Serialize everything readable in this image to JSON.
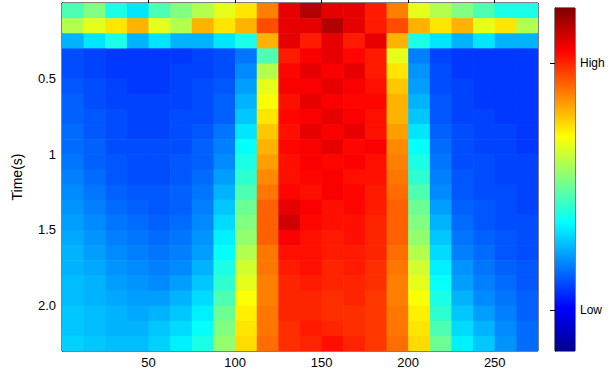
{
  "chart_data": {
    "type": "heatmap",
    "ylabel": "Time(s)",
    "x": [
      6.25,
      18.75,
      31.25,
      43.75,
      56.25,
      68.75,
      81.25,
      93.75,
      106.25,
      118.75,
      131.25,
      143.75,
      156.25,
      168.75,
      181.25,
      193.75,
      206.25,
      218.75,
      231.25,
      243.75,
      256.25,
      268.75
    ],
    "y": [
      0.05,
      0.15,
      0.25,
      0.35,
      0.45,
      0.55,
      0.65,
      0.75,
      0.85,
      0.95,
      1.05,
      1.15,
      1.25,
      1.35,
      1.45,
      1.55,
      1.65,
      1.75,
      1.85,
      1.95,
      2.05,
      2.15,
      2.25
    ],
    "values": [
      [
        0.45,
        0.5,
        0.4,
        0.35,
        0.45,
        0.5,
        0.55,
        0.6,
        0.65,
        0.75,
        0.9,
        0.95,
        0.9,
        0.9,
        0.85,
        0.75,
        0.6,
        0.55,
        0.5,
        0.45,
        0.4,
        0.4
      ],
      [
        0.55,
        0.6,
        0.65,
        0.7,
        0.6,
        0.55,
        0.7,
        0.65,
        0.7,
        0.8,
        0.9,
        0.9,
        0.95,
        0.9,
        0.85,
        0.8,
        0.7,
        0.65,
        0.7,
        0.6,
        0.65,
        0.55
      ],
      [
        0.3,
        0.35,
        0.4,
        0.3,
        0.35,
        0.3,
        0.3,
        0.35,
        0.4,
        0.7,
        0.9,
        0.85,
        0.9,
        0.85,
        0.9,
        0.7,
        0.4,
        0.35,
        0.3,
        0.35,
        0.3,
        0.3
      ],
      [
        0.2,
        0.19,
        0.18,
        0.18,
        0.18,
        0.18,
        0.19,
        0.2,
        0.24,
        0.45,
        0.85,
        0.88,
        0.9,
        0.87,
        0.85,
        0.6,
        0.25,
        0.19,
        0.18,
        0.18,
        0.18,
        0.18
      ],
      [
        0.2,
        0.19,
        0.18,
        0.18,
        0.18,
        0.19,
        0.19,
        0.2,
        0.26,
        0.55,
        0.87,
        0.9,
        0.88,
        0.9,
        0.85,
        0.65,
        0.27,
        0.2,
        0.18,
        0.18,
        0.18,
        0.18
      ],
      [
        0.21,
        0.2,
        0.19,
        0.18,
        0.18,
        0.19,
        0.2,
        0.21,
        0.28,
        0.6,
        0.88,
        0.88,
        0.9,
        0.88,
        0.86,
        0.68,
        0.28,
        0.2,
        0.19,
        0.18,
        0.18,
        0.18
      ],
      [
        0.22,
        0.2,
        0.19,
        0.19,
        0.19,
        0.19,
        0.2,
        0.22,
        0.3,
        0.62,
        0.86,
        0.9,
        0.88,
        0.87,
        0.87,
        0.7,
        0.3,
        0.21,
        0.19,
        0.18,
        0.18,
        0.18
      ],
      [
        0.22,
        0.21,
        0.2,
        0.19,
        0.19,
        0.2,
        0.2,
        0.22,
        0.32,
        0.65,
        0.87,
        0.88,
        0.9,
        0.88,
        0.86,
        0.7,
        0.32,
        0.21,
        0.19,
        0.19,
        0.18,
        0.18
      ],
      [
        0.23,
        0.21,
        0.2,
        0.19,
        0.19,
        0.2,
        0.21,
        0.24,
        0.35,
        0.68,
        0.86,
        0.9,
        0.88,
        0.9,
        0.86,
        0.72,
        0.35,
        0.22,
        0.2,
        0.19,
        0.19,
        0.18
      ],
      [
        0.23,
        0.22,
        0.2,
        0.2,
        0.2,
        0.2,
        0.22,
        0.25,
        0.38,
        0.7,
        0.87,
        0.88,
        0.9,
        0.87,
        0.88,
        0.74,
        0.38,
        0.23,
        0.2,
        0.19,
        0.19,
        0.18
      ],
      [
        0.24,
        0.22,
        0.21,
        0.2,
        0.2,
        0.21,
        0.22,
        0.26,
        0.4,
        0.72,
        0.86,
        0.88,
        0.87,
        0.88,
        0.86,
        0.75,
        0.4,
        0.24,
        0.2,
        0.2,
        0.19,
        0.19
      ],
      [
        0.25,
        0.23,
        0.21,
        0.2,
        0.2,
        0.21,
        0.23,
        0.28,
        0.42,
        0.74,
        0.86,
        0.87,
        0.88,
        0.86,
        0.86,
        0.76,
        0.42,
        0.25,
        0.21,
        0.2,
        0.19,
        0.19
      ],
      [
        0.26,
        0.24,
        0.22,
        0.21,
        0.21,
        0.22,
        0.24,
        0.3,
        0.45,
        0.76,
        0.87,
        0.86,
        0.88,
        0.87,
        0.85,
        0.77,
        0.45,
        0.26,
        0.21,
        0.2,
        0.2,
        0.19
      ],
      [
        0.27,
        0.25,
        0.23,
        0.22,
        0.21,
        0.22,
        0.25,
        0.32,
        0.48,
        0.78,
        0.9,
        0.88,
        0.86,
        0.87,
        0.85,
        0.78,
        0.48,
        0.28,
        0.22,
        0.21,
        0.2,
        0.19
      ],
      [
        0.28,
        0.26,
        0.24,
        0.23,
        0.22,
        0.23,
        0.26,
        0.34,
        0.5,
        0.78,
        0.92,
        0.87,
        0.86,
        0.86,
        0.84,
        0.78,
        0.5,
        0.3,
        0.23,
        0.21,
        0.2,
        0.2
      ],
      [
        0.29,
        0.27,
        0.25,
        0.24,
        0.23,
        0.24,
        0.27,
        0.36,
        0.52,
        0.78,
        0.88,
        0.86,
        0.85,
        0.86,
        0.84,
        0.78,
        0.52,
        0.32,
        0.24,
        0.22,
        0.21,
        0.2
      ],
      [
        0.3,
        0.28,
        0.26,
        0.25,
        0.24,
        0.25,
        0.28,
        0.38,
        0.55,
        0.76,
        0.86,
        0.86,
        0.85,
        0.85,
        0.84,
        0.77,
        0.55,
        0.34,
        0.25,
        0.23,
        0.21,
        0.2
      ],
      [
        0.3,
        0.29,
        0.27,
        0.26,
        0.25,
        0.26,
        0.3,
        0.4,
        0.58,
        0.76,
        0.85,
        0.86,
        0.84,
        0.85,
        0.83,
        0.76,
        0.58,
        0.36,
        0.27,
        0.24,
        0.22,
        0.21
      ],
      [
        0.31,
        0.3,
        0.28,
        0.27,
        0.26,
        0.28,
        0.32,
        0.42,
        0.6,
        0.75,
        0.84,
        0.85,
        0.84,
        0.84,
        0.83,
        0.75,
        0.6,
        0.38,
        0.28,
        0.25,
        0.23,
        0.21
      ],
      [
        0.31,
        0.3,
        0.29,
        0.28,
        0.28,
        0.3,
        0.34,
        0.45,
        0.62,
        0.75,
        0.84,
        0.84,
        0.83,
        0.84,
        0.82,
        0.75,
        0.62,
        0.4,
        0.3,
        0.26,
        0.24,
        0.22
      ],
      [
        0.32,
        0.31,
        0.3,
        0.29,
        0.3,
        0.32,
        0.36,
        0.48,
        0.64,
        0.76,
        0.84,
        0.84,
        0.83,
        0.83,
        0.82,
        0.76,
        0.64,
        0.42,
        0.32,
        0.28,
        0.25,
        0.22
      ],
      [
        0.32,
        0.31,
        0.3,
        0.3,
        0.32,
        0.34,
        0.38,
        0.5,
        0.65,
        0.76,
        0.83,
        0.85,
        0.84,
        0.83,
        0.82,
        0.76,
        0.65,
        0.45,
        0.34,
        0.3,
        0.26,
        0.23
      ],
      [
        0.33,
        0.32,
        0.31,
        0.31,
        0.33,
        0.36,
        0.4,
        0.52,
        0.66,
        0.77,
        0.83,
        0.84,
        0.86,
        0.84,
        0.82,
        0.77,
        0.66,
        0.48,
        0.36,
        0.32,
        0.27,
        0.23
      ]
    ],
    "xlim": [
      0,
      275
    ],
    "ylim": [
      0,
      2.3
    ],
    "xticks": [
      50,
      100,
      150,
      200,
      250
    ],
    "yticks": [
      0.5,
      1,
      1.5,
      {
        "value": 2,
        "label": "2.0"
      }
    ],
    "colorbar": {
      "range": [
        0,
        1
      ],
      "ticks": [
        {
          "value": 0.84,
          "label": "High"
        },
        {
          "value": 0.12,
          "label": "Low"
        }
      ]
    }
  }
}
